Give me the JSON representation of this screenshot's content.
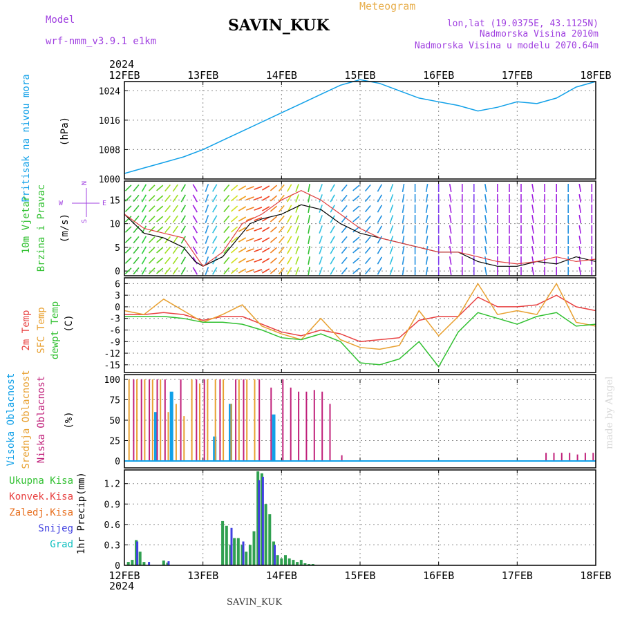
{
  "header": {
    "model_label": "Model",
    "model_name": "wrf-nmm_v3.9.1 e1km",
    "station": "SAVIN_KUK",
    "product": "Meteogram",
    "lonlat": "lon,lat (19.0375E, 43.1125N)",
    "elevation": "Nadmorska Visina 2010m",
    "model_elevation": "Nadmorska Visina u modelu 2070.64m",
    "year": "2024",
    "footer_station": "SAVIN_KUK",
    "signature": "made by Angel",
    "colors": {
      "purple": "#a040e0",
      "orange": "#e8b050",
      "title": "#000000"
    }
  },
  "chart_data": [
    {
      "type": "line",
      "id": "pressure",
      "ylabel": "Pritisak na nivou mora",
      "unit": "(hPa)",
      "yticks": [
        1000,
        1008,
        1016,
        1024
      ],
      "ylim": [
        1000,
        1026.5
      ],
      "x_dates": [
        "12FEB",
        "13FEB",
        "14FEB",
        "15FEB",
        "16FEB",
        "17FEB",
        "18FEB"
      ],
      "x_range_days": [
        0,
        6
      ],
      "grid": true,
      "color": "#10a0e8",
      "x": [
        0,
        0.25,
        0.5,
        0.75,
        1.0,
        1.25,
        1.5,
        1.75,
        2.0,
        2.25,
        2.5,
        2.75,
        3.0,
        3.25,
        3.5,
        3.75,
        4.0,
        4.25,
        4.5,
        4.75,
        5.0,
        5.25,
        5.5,
        5.75,
        6.0
      ],
      "values": [
        1001.5,
        1003.0,
        1004.5,
        1006.0,
        1008.0,
        1010.5,
        1013.0,
        1015.5,
        1018.0,
        1020.5,
        1023.0,
        1025.5,
        1027.0,
        1026.0,
        1024.0,
        1022.0,
        1021.0,
        1020.0,
        1018.5,
        1019.5,
        1021.0,
        1020.5,
        1022.0,
        1025.0,
        1026.5
      ]
    },
    {
      "type": "line",
      "id": "wind",
      "ylabel_1": "10m Vjetar",
      "ylabel_2": "Brzina i Pravac",
      "unit": "(m/s)",
      "direction_legend": "N S W E",
      "yticks": [
        0,
        5,
        10,
        15
      ],
      "ylim": [
        -1,
        19
      ],
      "grid": true,
      "series": [
        {
          "role": "speed",
          "color": "#000000",
          "x": [
            0,
            0.25,
            0.5,
            0.75,
            0.9,
            1.0,
            1.25,
            1.5,
            1.6,
            1.75,
            2.0,
            2.25,
            2.5,
            2.75,
            3.0,
            3.25,
            3.5,
            3.75,
            4.0,
            4.25,
            4.5,
            4.75,
            5.0,
            5.25,
            5.5,
            5.75,
            6.0
          ],
          "values": [
            12,
            8,
            7,
            5,
            2,
            1,
            3,
            8,
            10,
            11,
            12,
            14,
            13,
            10,
            8,
            7,
            6,
            5,
            4,
            4,
            2,
            1,
            1,
            2,
            1.5,
            3,
            2
          ]
        },
        {
          "role": "gust",
          "color": "#e04040",
          "x": [
            0,
            0.25,
            0.5,
            0.75,
            1.0,
            1.25,
            1.5,
            1.75,
            2.0,
            2.25,
            2.5,
            2.75,
            3.0,
            3.25,
            3.5,
            3.75,
            4.0,
            4.25,
            4.5,
            4.75,
            5.0,
            5.25,
            5.5,
            5.75,
            6.0
          ],
          "values": [
            12,
            9,
            8,
            7,
            1,
            4,
            10,
            12,
            15,
            17,
            15,
            12,
            9,
            7,
            6,
            5,
            4,
            4,
            3,
            2,
            1.5,
            2,
            3,
            2,
            2.5
          ]
        }
      ],
      "arrows": {
        "x": [
          0.05,
          0.15,
          0.25,
          0.35,
          0.45,
          0.55,
          0.65,
          0.75,
          0.9,
          1.05,
          1.15,
          1.3,
          1.4,
          1.5,
          1.6,
          1.7,
          1.8,
          1.9,
          2.0,
          2.1,
          2.2,
          2.35,
          2.5,
          2.65,
          2.8,
          2.95,
          3.1,
          3.25,
          3.4,
          3.55,
          3.7,
          3.85,
          4.0,
          4.15,
          4.3,
          4.45,
          4.6,
          4.75,
          4.9,
          5.05,
          5.2,
          5.35,
          5.5,
          5.65,
          5.8,
          5.95
        ],
        "dir_deg": [
          45,
          50,
          60,
          45,
          40,
          50,
          55,
          60,
          300,
          250,
          240,
          230,
          220,
          210,
          200,
          200,
          210,
          220,
          230,
          240,
          250,
          260,
          250,
          240,
          230,
          220,
          230,
          240,
          250,
          260,
          270,
          260,
          270,
          280,
          270,
          270,
          280,
          270,
          270,
          270,
          280,
          270,
          270,
          270,
          280,
          270
        ],
        "color": [
          "#30c030",
          "#30c030",
          "#30d040",
          "#60d020",
          "#60d020",
          "#a0e020",
          "#a0e020",
          "#30c030",
          "#a020e0",
          "#2090e0",
          "#30c0e0",
          "#60d020",
          "#d0e020",
          "#f0a020",
          "#f08020",
          "#f04020",
          "#f04020",
          "#f08020",
          "#f0a020",
          "#d0e020",
          "#a0e020",
          "#30c030",
          "#30c0e0",
          "#30c0e0",
          "#2090e0",
          "#2090e0",
          "#2090e0",
          "#2090e0",
          "#30c0e0",
          "#2090e0",
          "#2090e0",
          "#2090e0",
          "#8040f0",
          "#a020e0",
          "#a020e0",
          "#8040f0",
          "#2090e0",
          "#a020e0",
          "#a020e0",
          "#a020e0",
          "#a020e0",
          "#a020e0",
          "#a020e0",
          "#2090e0",
          "#a020e0",
          "#a020e0"
        ]
      }
    },
    {
      "type": "line",
      "id": "temperature",
      "ylabel_1": "2m Temp",
      "ylabel_2": "SFC Temp",
      "ylabel_3": "dewpt Temp",
      "unit": "(C)",
      "yticks": [
        6,
        3,
        0,
        -3,
        -6,
        -9,
        -12,
        -15
      ],
      "ylim": [
        -17,
        7.5
      ],
      "grid": true,
      "series": [
        {
          "name": "2m Temp",
          "color": "#e84040",
          "x": [
            0,
            0.25,
            0.5,
            0.75,
            1.0,
            1.25,
            1.5,
            1.75,
            2.0,
            2.25,
            2.5,
            2.75,
            3.0,
            3.25,
            3.5,
            3.75,
            4.0,
            4.25,
            4.5,
            4.75,
            5.0,
            5.25,
            5.5,
            5.75,
            6.0
          ],
          "values": [
            -2,
            -2,
            -1.5,
            -2,
            -3.5,
            -2.5,
            -2.5,
            -4.5,
            -6.5,
            -7.5,
            -6,
            -7,
            -9,
            -8.5,
            -8,
            -3.5,
            -2.5,
            -2.5,
            2.5,
            0,
            0,
            0.5,
            3,
            0,
            -1
          ]
        },
        {
          "name": "SFC Temp",
          "color": "#e8a030",
          "x": [
            0,
            0.25,
            0.5,
            0.75,
            1.0,
            1.25,
            1.5,
            1.75,
            2.0,
            2.25,
            2.5,
            2.75,
            3.0,
            3.25,
            3.5,
            3.75,
            4.0,
            4.25,
            4.5,
            4.75,
            5.0,
            5.25,
            5.5,
            5.75,
            6.0
          ],
          "values": [
            -1,
            -2,
            2,
            -1,
            -4,
            -2,
            0.5,
            -5,
            -7,
            -8.5,
            -3,
            -8.5,
            -10.5,
            -11,
            -10,
            -1,
            -7.5,
            -2.5,
            6,
            -2,
            -1,
            -2,
            6,
            -4,
            -5
          ]
        },
        {
          "name": "dewpt Temp",
          "color": "#30c030",
          "x": [
            0,
            0.25,
            0.5,
            0.75,
            1.0,
            1.25,
            1.5,
            1.75,
            2.0,
            2.25,
            2.5,
            2.75,
            3.0,
            3.25,
            3.5,
            3.75,
            4.0,
            4.25,
            4.5,
            4.75,
            5.0,
            5.25,
            5.5,
            5.75,
            6.0
          ],
          "values": [
            -2.5,
            -2.5,
            -2.5,
            -3,
            -4,
            -4,
            -4.5,
            -6,
            -8,
            -8.5,
            -7,
            -9,
            -14.5,
            -15,
            -13.5,
            -9,
            -15.5,
            -6.5,
            -1.5,
            -3,
            -4.5,
            -2.5,
            -1.5,
            -5,
            -4.5
          ]
        }
      ]
    },
    {
      "type": "bar",
      "id": "clouds",
      "ylabel_1": "Visoka Oblacnost",
      "ylabel_2": "Srednja Oblacnost",
      "ylabel_3": "Niska Oblacnost",
      "unit": "(%)",
      "yticks": [
        0,
        25,
        50,
        75,
        100
      ],
      "ylim": [
        0,
        100
      ],
      "grid": true,
      "series": [
        {
          "name": "Visoka Oblacnost",
          "color": "#10a0e8",
          "x": [
            0.4,
            0.6,
            1.15,
            1.35,
            1.9
          ],
          "values": [
            60,
            85,
            30,
            70,
            57
          ]
        },
        {
          "name": "Srednja Oblacnost",
          "color": "#e8a030",
          "x": [
            0.05,
            0.15,
            0.25,
            0.35,
            0.45,
            0.55,
            0.65,
            0.75,
            0.85,
            0.95,
            1.05,
            1.15,
            1.25,
            1.35,
            1.45,
            1.55,
            1.65
          ],
          "values": [
            100,
            100,
            100,
            100,
            100,
            60,
            70,
            55,
            100,
            95,
            100,
            100,
            100,
            70,
            100,
            100,
            100
          ]
        },
        {
          "name": "Niska Oblacnost",
          "color": "#c0207a",
          "x": [
            0.1,
            0.2,
            0.3,
            0.4,
            0.5,
            0.7,
            0.9,
            1.0,
            1.2,
            1.4,
            1.5,
            1.7,
            1.85,
            2.0,
            2.1,
            2.2,
            2.3,
            2.4,
            2.5,
            2.6,
            2.75,
            5.35,
            5.45,
            5.55,
            5.65,
            5.75,
            5.85,
            5.95
          ],
          "values": [
            100,
            100,
            100,
            100,
            100,
            100,
            100,
            100,
            100,
            100,
            100,
            100,
            90,
            100,
            90,
            85,
            85,
            87,
            85,
            70,
            7,
            10,
            10,
            10,
            10,
            8,
            10,
            10
          ]
        }
      ]
    },
    {
      "type": "bar",
      "id": "precip",
      "ylabel_1": "1hr Precip",
      "unit": "(mm)",
      "legend": [
        "Ukupna Kisa",
        "Konvek.Kisa",
        "Zaledj.Kisa",
        "Snijeg",
        "Grad"
      ],
      "legend_colors": [
        "#30c030",
        "#e84040",
        "#e87020",
        "#4040e0",
        "#10c0c0"
      ],
      "yticks": [
        0,
        0.3,
        0.6,
        0.9,
        1.2
      ],
      "ylim": [
        0,
        1.4
      ],
      "grid": true,
      "series": [
        {
          "name": "Ukupna Kisa",
          "color": "#30a050",
          "x": [
            0.05,
            0.1,
            0.15,
            0.2,
            0.25,
            0.5,
            0.55,
            1.25,
            1.3,
            1.35,
            1.4,
            1.45,
            1.5,
            1.55,
            1.6,
            1.65,
            1.7,
            1.75,
            1.8,
            1.85,
            1.9,
            1.95,
            2.0,
            2.05,
            2.1,
            2.15,
            2.2,
            2.25,
            2.3,
            2.35,
            2.4
          ],
          "values": [
            0.05,
            0.08,
            0.37,
            0.2,
            0.05,
            0.07,
            0.04,
            0.65,
            0.58,
            0.3,
            0.4,
            0.4,
            0.3,
            0.2,
            0.3,
            0.5,
            1.38,
            1.35,
            0.9,
            0.75,
            0.35,
            0.15,
            0.1,
            0.15,
            0.1,
            0.08,
            0.05,
            0.08,
            0.03,
            0.02,
            0.02
          ]
        },
        {
          "name": "Snijeg",
          "color": "#4040e0",
          "x": [
            0.15,
            0.3,
            0.55,
            1.35,
            1.5,
            1.7,
            1.75,
            1.9
          ],
          "values": [
            0.35,
            0.05,
            0.06,
            0.55,
            0.35,
            1.25,
            1.3,
            0.3
          ]
        }
      ]
    }
  ]
}
